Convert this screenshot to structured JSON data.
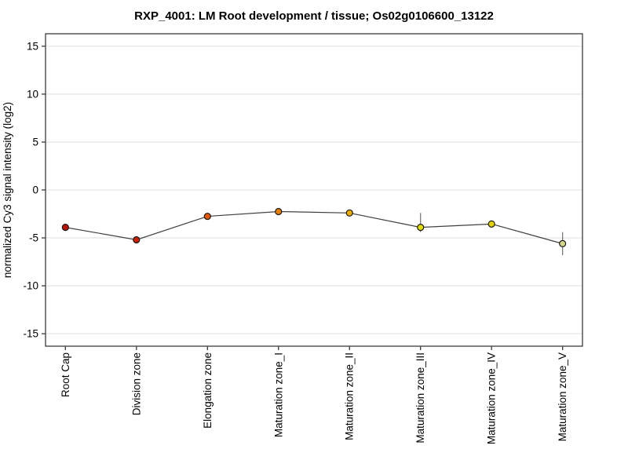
{
  "chart_data": {
    "type": "line",
    "title": "RXP_4001: LM Root development / tissue; Os02g0106600_13122",
    "xlabel": "",
    "ylabel": "normalized Cy3 signal intensity (log2)",
    "categories": [
      "Root Cap",
      "Division zone",
      "Elongation zone",
      "Maturation zone_I",
      "Maturation zone_II",
      "Maturation zone_III",
      "Maturation zone_IV",
      "Maturation zone_V"
    ],
    "values": [
      -3.9,
      -5.2,
      -2.75,
      -2.25,
      -2.4,
      -3.9,
      -3.55,
      -5.6
    ],
    "error_up": [
      0.15,
      0.35,
      0.2,
      0.35,
      0.3,
      1.5,
      0.3,
      1.2
    ],
    "error_down": [
      0.15,
      0.2,
      0.2,
      0.3,
      0.3,
      0.5,
      0.3,
      1.2
    ],
    "point_colors": [
      "#b81400",
      "#cc2000",
      "#e55400",
      "#e87f00",
      "#e8ae00",
      "#dfdc00",
      "#e3d300",
      "#d6d68e"
    ],
    "yticks": [
      -15,
      -10,
      -5,
      0,
      5,
      10,
      15
    ],
    "ylim": [
      -16.3,
      16.3
    ],
    "grid": true,
    "legend": false,
    "line_color": "#404040",
    "marker_stroke": "#1a1a1a",
    "error_color": "#707070",
    "grid_color": "#e6e6e6",
    "axis_color": "#3c3c3c",
    "tick_label_color": "#000000"
  }
}
